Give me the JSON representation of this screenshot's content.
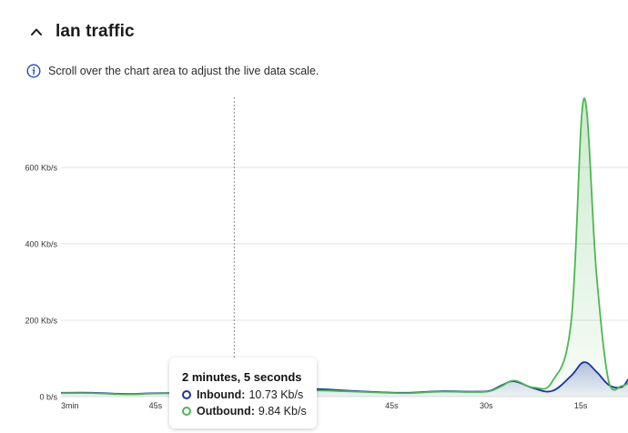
{
  "panel": {
    "title": "lan traffic",
    "collapse_icon": "chevron-up-icon",
    "info_icon": "info-icon",
    "info_text": "Scroll over the chart area to adjust the live data scale."
  },
  "tooltip": {
    "title": "2 minutes, 5 seconds",
    "rows": [
      {
        "label": "Inbound:",
        "value": "10.73 Kb/s",
        "color": "#1a33a3"
      },
      {
        "label": "Outbound:",
        "value": "9.84 Kb/s",
        "color": "#4cb851"
      }
    ]
  },
  "colors": {
    "inbound": "#1a33a3",
    "outbound": "#4cb851",
    "grid": "#e3e3e3",
    "accent": "#1a4fc4"
  },
  "chart_data": {
    "type": "area",
    "x_ticks": [
      "3min",
      "45s",
      "2min",
      "45s",
      "30s",
      "15s"
    ],
    "y_ticks": [
      "0 b/s",
      "200 Kb/s",
      "400 Kb/s",
      "600 Kb/s"
    ],
    "y_unit": "Kb/s",
    "ylim": [
      0,
      800
    ],
    "x_seconds_ago": [
      180,
      170,
      160,
      150,
      140,
      130,
      125,
      120,
      110,
      100,
      90,
      80,
      70,
      60,
      50,
      44,
      40,
      36,
      30,
      24,
      18,
      14,
      10,
      6,
      2,
      0
    ],
    "series": [
      {
        "name": "Inbound",
        "values": [
          10,
          10,
          7,
          9,
          10,
          11,
          10.73,
          12,
          14,
          20,
          16,
          12,
          10,
          14,
          13,
          15,
          30,
          40,
          22,
          15,
          55,
          90,
          65,
          30,
          25,
          45
        ]
      },
      {
        "name": "Outbound",
        "values": [
          9,
          9,
          6,
          8,
          9,
          10,
          9.84,
          11,
          13,
          16,
          14,
          11,
          9,
          13,
          12,
          14,
          28,
          42,
          24,
          40,
          200,
          780,
          320,
          35,
          28,
          35
        ]
      }
    ],
    "hover_x_seconds_ago": 125,
    "grid": true
  }
}
